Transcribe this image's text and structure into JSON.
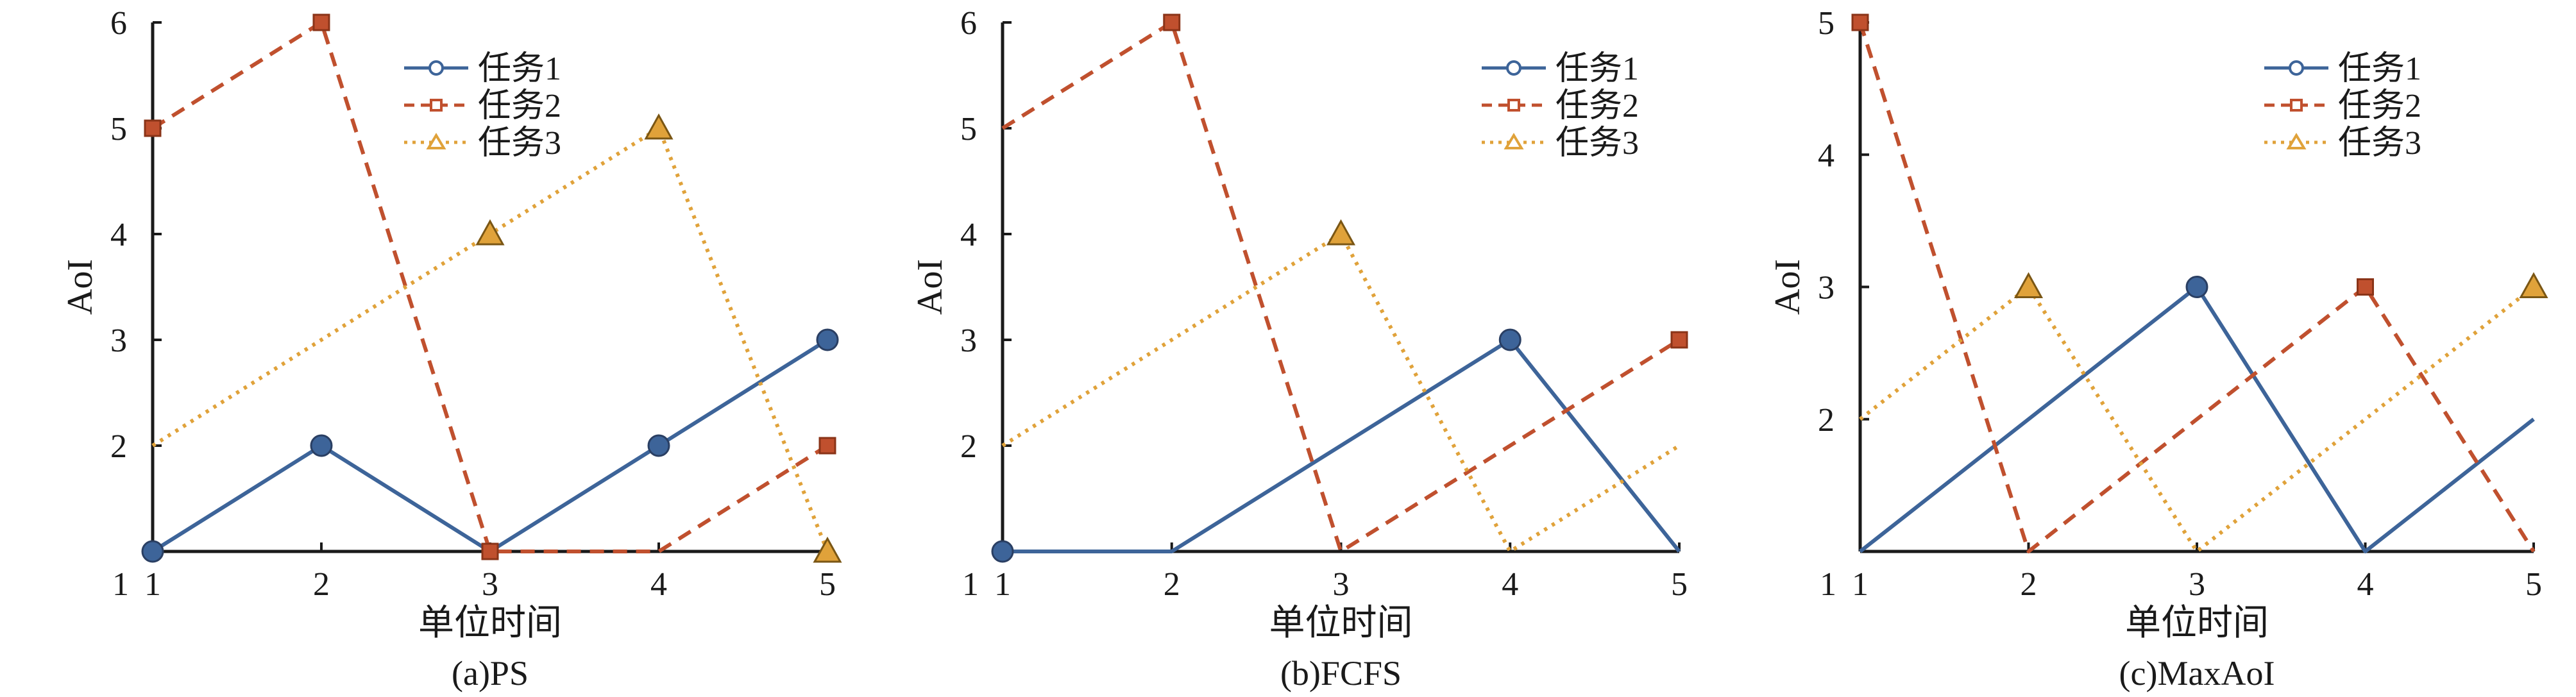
{
  "colors": {
    "series1": "#3d6499",
    "series2": "#c0502e",
    "series3": "#e0a23a",
    "axis": "#1a1a1a"
  },
  "chart_data": [
    {
      "type": "line",
      "caption": "(a)PS",
      "xlabel": "单位时间",
      "ylabel": "AoI",
      "xlim": [
        1,
        5
      ],
      "ylim": [
        1,
        6
      ],
      "xticks": [
        "1",
        "2",
        "3",
        "4",
        "5"
      ],
      "yticks": [
        "1",
        "2",
        "3",
        "4",
        "5",
        "6"
      ],
      "legend": "top-center",
      "grid": false,
      "series": [
        {
          "name": "任务1",
          "style": "solid",
          "marker": "circle",
          "x": [
            1,
            2,
            3,
            4,
            5
          ],
          "y": [
            1,
            2,
            1,
            2,
            3
          ],
          "markers": [
            [
              1,
              1
            ],
            [
              2,
              2
            ],
            [
              4,
              2
            ],
            [
              5,
              3
            ]
          ]
        },
        {
          "name": "任务2",
          "style": "dashed",
          "marker": "square",
          "x": [
            1,
            2,
            3,
            4,
            5
          ],
          "y": [
            5,
            6,
            1,
            1,
            2
          ],
          "markers": [
            [
              1,
              5
            ],
            [
              2,
              6
            ],
            [
              3,
              1
            ],
            [
              5,
              2
            ]
          ]
        },
        {
          "name": "任务3",
          "style": "dotted",
          "marker": "triangle",
          "x": [
            1,
            3,
            4,
            5
          ],
          "y": [
            2,
            4,
            5,
            1
          ],
          "markers": [
            [
              3,
              4
            ],
            [
              4,
              5
            ],
            [
              5,
              1
            ]
          ]
        }
      ]
    },
    {
      "type": "line",
      "caption": "(b)FCFS",
      "xlabel": "单位时间",
      "ylabel": "AoI",
      "xlim": [
        1,
        5
      ],
      "ylim": [
        1,
        6
      ],
      "xticks": [
        "1",
        "2",
        "3",
        "4",
        "5"
      ],
      "yticks": [
        "1",
        "2",
        "3",
        "4",
        "5",
        "6"
      ],
      "legend": "top-right",
      "grid": false,
      "series": [
        {
          "name": "任务1",
          "style": "solid",
          "marker": "circle",
          "x": [
            1,
            2,
            4,
            5
          ],
          "y": [
            1,
            1,
            3,
            1
          ],
          "markers": [
            [
              1,
              1
            ],
            [
              4,
              3
            ]
          ]
        },
        {
          "name": "任务2",
          "style": "dashed",
          "marker": "square",
          "x": [
            1,
            2,
            3,
            5
          ],
          "y": [
            5,
            6,
            1,
            3
          ],
          "markers": [
            [
              2,
              6
            ],
            [
              5,
              3
            ]
          ]
        },
        {
          "name": "任务3",
          "style": "dotted",
          "marker": "triangle",
          "x": [
            1,
            3,
            4,
            5
          ],
          "y": [
            2,
            4,
            1,
            2
          ],
          "markers": [
            [
              3,
              4
            ]
          ]
        }
      ]
    },
    {
      "type": "line",
      "caption": "(c)MaxAoI",
      "xlabel": "单位时间",
      "ylabel": "AoI",
      "xlim": [
        1,
        5
      ],
      "ylim": [
        1,
        5
      ],
      "xticks": [
        "1",
        "2",
        "3",
        "4",
        "5"
      ],
      "yticks": [
        "1",
        "2",
        "3",
        "4",
        "5"
      ],
      "legend": "top-right",
      "grid": false,
      "series": [
        {
          "name": "任务1",
          "style": "solid",
          "marker": "circle",
          "x": [
            1,
            3,
            4,
            5
          ],
          "y": [
            1,
            3,
            1,
            2
          ],
          "markers": [
            [
              3,
              3
            ]
          ]
        },
        {
          "name": "任务2",
          "style": "dashed",
          "marker": "square",
          "x": [
            1,
            2,
            4,
            5
          ],
          "y": [
            5,
            1,
            3,
            1
          ],
          "markers": [
            [
              1,
              5
            ],
            [
              4,
              3
            ]
          ]
        },
        {
          "name": "任务3",
          "style": "dotted",
          "marker": "triangle",
          "x": [
            1,
            2,
            3,
            5
          ],
          "y": [
            2,
            3,
            1,
            3
          ],
          "markers": [
            [
              2,
              3
            ],
            [
              5,
              3
            ]
          ]
        }
      ]
    }
  ]
}
